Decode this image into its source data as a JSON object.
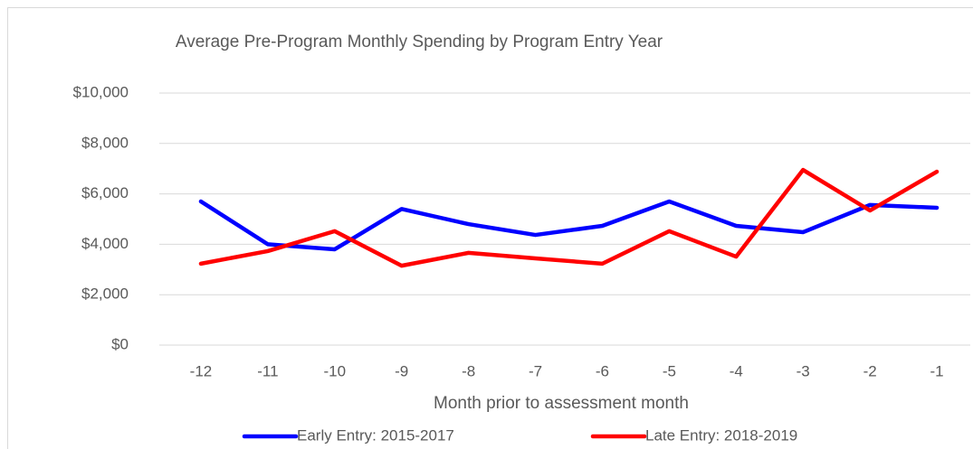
{
  "chart_data": {
    "type": "line",
    "title": "Average Pre-Program Monthly Spending by Program Entry Year",
    "x_label": "Month prior to assessment month",
    "categories": [
      "-12",
      "-11",
      "-10",
      "-9",
      "-8",
      "-7",
      "-6",
      "-5",
      "-4",
      "-3",
      "-2",
      "-1"
    ],
    "series": [
      {
        "name": "Early Entry: 2015-2017",
        "color": "#0000ff",
        "values": [
          5700,
          4000,
          3800,
          5400,
          4800,
          4370,
          4730,
          5700,
          4730,
          4480,
          5560,
          5450
        ]
      },
      {
        "name": "Late Entry: 2018-2019",
        "color": "#ff0000",
        "values": [
          3230,
          3730,
          4520,
          3150,
          3660,
          3440,
          3230,
          4520,
          3510,
          6950,
          5340,
          6880
        ]
      }
    ],
    "ylim": [
      0,
      10000
    ],
    "yticks": [
      {
        "value": 0,
        "label": "$0"
      },
      {
        "value": 2000,
        "label": "$2,000"
      },
      {
        "value": 4000,
        "label": "$4,000"
      },
      {
        "value": 6000,
        "label": "$6,000"
      },
      {
        "value": 8000,
        "label": "$8,000"
      },
      {
        "value": 10000,
        "label": "$10,000"
      }
    ],
    "grid": true,
    "legend": "bottom"
  }
}
